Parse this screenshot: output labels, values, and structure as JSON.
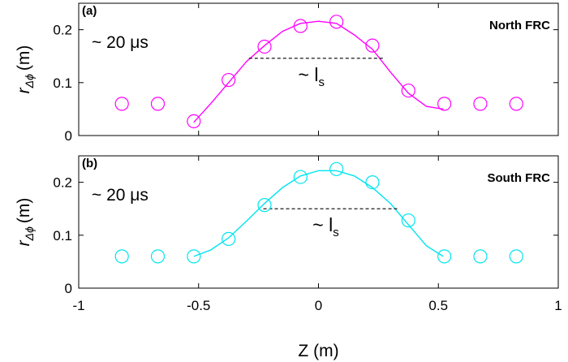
{
  "chart_data": [
    {
      "type": "scatter",
      "panel_tag": "(a)",
      "title": "North FRC",
      "time_label": "~ 20 μs",
      "annotation": "~ l",
      "annotation_sub": "s",
      "color": "#ff00ff",
      "xlim": [
        -1,
        1
      ],
      "ylim": [
        0,
        0.25
      ],
      "yticks": [
        "0",
        "0.1",
        "0.2"
      ],
      "ylabel": "r",
      "ylabel_sub": "Δϕ",
      "ylabel_unit": "(m)",
      "points": {
        "x": [
          -0.82,
          -0.67,
          -0.52,
          -0.375,
          -0.225,
          -0.075,
          0.075,
          0.225,
          0.375,
          0.525,
          0.675,
          0.825
        ],
        "y": [
          0.06,
          0.06,
          0.027,
          0.105,
          0.168,
          0.207,
          0.215,
          0.17,
          0.085,
          0.06,
          0.06,
          0.06
        ]
      },
      "fit_line": {
        "x": [
          -0.52,
          -0.45,
          -0.375,
          -0.3,
          -0.225,
          -0.15,
          -0.075,
          0,
          0.075,
          0.15,
          0.225,
          0.3,
          0.375,
          0.45,
          0.52
        ],
        "y": [
          0.025,
          0.06,
          0.1,
          0.14,
          0.17,
          0.197,
          0.212,
          0.216,
          0.212,
          0.19,
          0.163,
          0.12,
          0.08,
          0.055,
          0.05
        ]
      },
      "dashed_line": {
        "x": [
          -0.29,
          0.27
        ],
        "y": [
          0.146,
          0.146
        ]
      }
    },
    {
      "type": "scatter",
      "panel_tag": "(b)",
      "title": "South FRC",
      "time_label": "~ 20 μs",
      "annotation": "~ l",
      "annotation_sub": "s",
      "color": "#00e5ee",
      "xlim": [
        -1,
        1
      ],
      "ylim": [
        0,
        0.25
      ],
      "yticks": [
        "0",
        "0.1",
        "0.2"
      ],
      "xticks": [
        "-1",
        "-0.5",
        "0",
        "0.5",
        "1"
      ],
      "xlabel": "Z (m)",
      "ylabel": "r",
      "ylabel_sub": "Δϕ",
      "ylabel_unit": "(m)",
      "points": {
        "x": [
          -0.82,
          -0.67,
          -0.52,
          -0.375,
          -0.225,
          -0.075,
          0.075,
          0.225,
          0.375,
          0.525,
          0.675,
          0.825
        ],
        "y": [
          0.06,
          0.06,
          0.06,
          0.093,
          0.157,
          0.21,
          0.225,
          0.2,
          0.128,
          0.06,
          0.06,
          0.06
        ]
      },
      "fit_line": {
        "x": [
          -0.52,
          -0.45,
          -0.375,
          -0.3,
          -0.225,
          -0.15,
          -0.075,
          0,
          0.075,
          0.15,
          0.225,
          0.3,
          0.375,
          0.45,
          0.52
        ],
        "y": [
          0.06,
          0.072,
          0.095,
          0.127,
          0.16,
          0.19,
          0.212,
          0.222,
          0.222,
          0.212,
          0.19,
          0.16,
          0.12,
          0.08,
          0.06
        ]
      },
      "dashed_line": {
        "x": [
          -0.23,
          0.33
        ],
        "y": [
          0.15,
          0.15
        ]
      }
    }
  ]
}
